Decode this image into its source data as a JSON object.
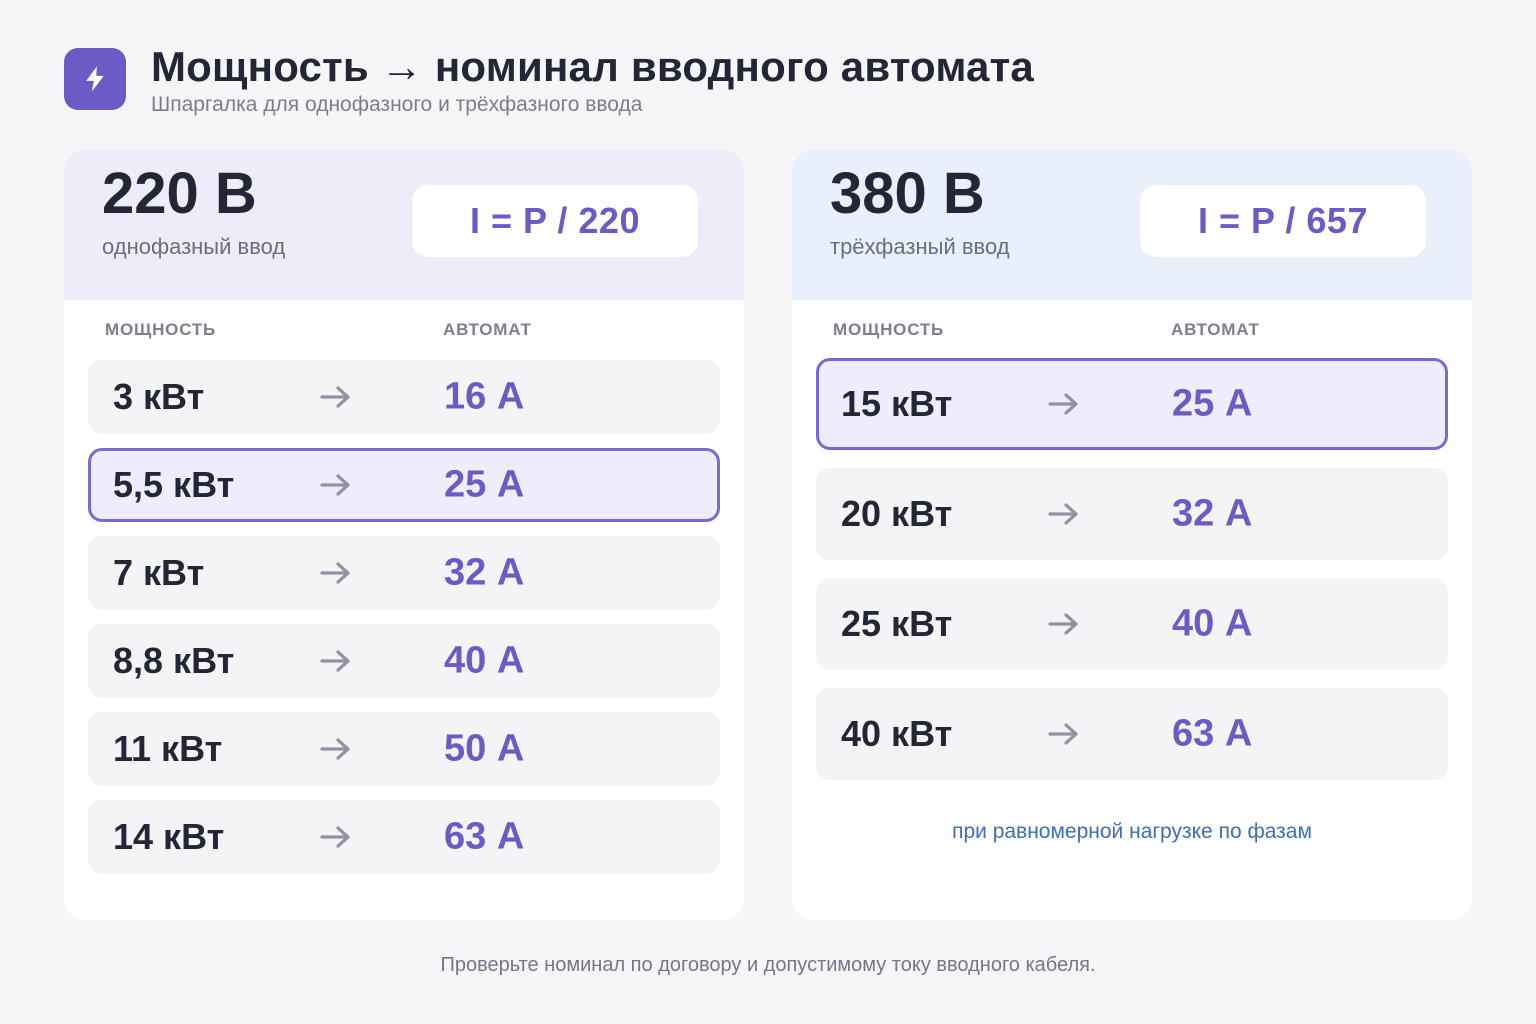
{
  "header": {
    "icon": "lightning-icon",
    "title": "Мощность → номинал вводного автомата",
    "subtitle": "Шпаргалка для однофазного и трёхфазного ввода"
  },
  "colors": {
    "accent": "#6b5bc6",
    "left_head_bg": "#efecfa",
    "right_head_bg": "#e9f0fb",
    "note": "#3f6fae"
  },
  "single_phase": {
    "voltage": "220 В",
    "type": "однофазный ввод",
    "formula": "I = P / 220",
    "columns": {
      "power": "МОЩНОСТЬ",
      "breaker": "АВТОМАТ"
    },
    "rows": [
      {
        "power": "3 кВт",
        "breaker": "16 А",
        "highlighted": false
      },
      {
        "power": "5,5 кВт",
        "breaker": "25 А",
        "highlighted": true
      },
      {
        "power": "7 кВт",
        "breaker": "32 А",
        "highlighted": false
      },
      {
        "power": "8,8 кВт",
        "breaker": "40 А",
        "highlighted": false
      },
      {
        "power": "11 кВт",
        "breaker": "50 А",
        "highlighted": false
      },
      {
        "power": "14 кВт",
        "breaker": "63 А",
        "highlighted": false
      }
    ]
  },
  "three_phase": {
    "voltage": "380 В",
    "type": "трёхфазный ввод",
    "formula": "I = P / 657",
    "columns": {
      "power": "МОЩНОСТЬ",
      "breaker": "АВТОМАТ"
    },
    "rows": [
      {
        "power": "15 кВт",
        "breaker": "25 А",
        "highlighted": true
      },
      {
        "power": "20 кВт",
        "breaker": "32 А",
        "highlighted": false
      },
      {
        "power": "25 кВт",
        "breaker": "40 А",
        "highlighted": false
      },
      {
        "power": "40 кВт",
        "breaker": "63 А",
        "highlighted": false
      }
    ],
    "note": "при равномерной нагрузке по фазам"
  },
  "footer": "Проверьте номинал по договору и допустимому току вводного кабеля."
}
